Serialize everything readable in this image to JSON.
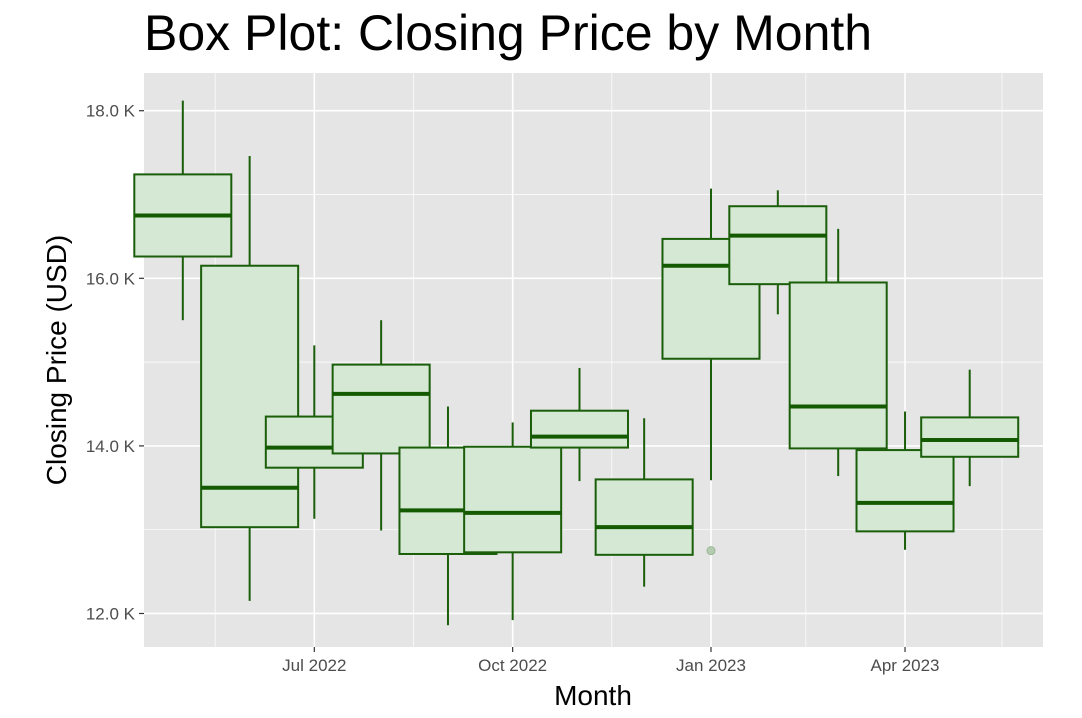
{
  "chart_data": {
    "type": "box",
    "title": "Box Plot: Closing Price by Month",
    "xlabel": "Month",
    "ylabel": "Closing Price (USD)",
    "ylim": [
      11600,
      18450
    ],
    "x_range": [
      "2022-04-13",
      "2023-06-04"
    ],
    "y_ticks": [
      {
        "value": 12000,
        "label": "12.0 K"
      },
      {
        "value": 14000,
        "label": "14.0 K"
      },
      {
        "value": 16000,
        "label": "16.0 K"
      },
      {
        "value": 18000,
        "label": "18.0 K"
      }
    ],
    "y_minor_ticks": [
      13000,
      15000,
      17000
    ],
    "x_ticks": [
      {
        "date": "2022-07-01",
        "label": "Jul 2022"
      },
      {
        "date": "2022-10-01",
        "label": "Oct 2022"
      },
      {
        "date": "2023-01-01",
        "label": "Jan 2023"
      },
      {
        "date": "2023-04-01",
        "label": "Apr 2023"
      }
    ],
    "x_minor_ticks": [
      "2022-05-16",
      "2022-08-16",
      "2022-11-16",
      "2023-02-14",
      "2023-05-16"
    ],
    "boxes": [
      {
        "month": "2022-05-01",
        "min": 15500,
        "q1": 16260,
        "median": 16750,
        "q3": 17240,
        "max": 18120,
        "outliers": []
      },
      {
        "month": "2022-06-01",
        "min": 12150,
        "q1": 13030,
        "median": 13500,
        "q3": 16150,
        "max": 17460,
        "outliers": []
      },
      {
        "month": "2022-07-01",
        "min": 13130,
        "q1": 13740,
        "median": 13980,
        "q3": 14350,
        "max": 15200,
        "outliers": []
      },
      {
        "month": "2022-08-01",
        "min": 12990,
        "q1": 13910,
        "median": 14620,
        "q3": 14970,
        "max": 15500,
        "outliers": []
      },
      {
        "month": "2022-09-01",
        "min": 11860,
        "q1": 12710,
        "median": 13230,
        "q3": 13980,
        "max": 14470,
        "outliers": []
      },
      {
        "month": "2022-10-01",
        "min": 11920,
        "q1": 12730,
        "median": 13200,
        "q3": 13990,
        "max": 14280,
        "outliers": []
      },
      {
        "month": "2022-11-01",
        "min": 13580,
        "q1": 13980,
        "median": 14110,
        "q3": 14420,
        "max": 14930,
        "outliers": []
      },
      {
        "month": "2022-12-01",
        "min": 12320,
        "q1": 12700,
        "median": 13030,
        "q3": 13600,
        "max": 14330,
        "outliers": []
      },
      {
        "month": "2023-01-01",
        "min": 13590,
        "q1": 15040,
        "median": 16150,
        "q3": 16470,
        "max": 17070,
        "outliers": [
          12750
        ]
      },
      {
        "month": "2023-02-01",
        "min": 15570,
        "q1": 15930,
        "median": 16510,
        "q3": 16860,
        "max": 17050,
        "outliers": []
      },
      {
        "month": "2023-03-01",
        "min": 13640,
        "q1": 13970,
        "median": 14470,
        "q3": 15950,
        "max": 16590,
        "outliers": []
      },
      {
        "month": "2023-04-01",
        "min": 12760,
        "q1": 12980,
        "median": 13320,
        "q3": 13950,
        "max": 14410,
        "outliers": []
      },
      {
        "month": "2023-05-01",
        "min": 13520,
        "q1": 13870,
        "median": 14070,
        "q3": 14340,
        "max": 14910,
        "outliers": []
      }
    ],
    "colors": {
      "panel": "#e5e5e5",
      "grid": "#ffffff",
      "box_fill": "#d5e8d4",
      "box_stroke": "#1a5e0a",
      "median": "#145a00",
      "outlier": "#b5cbb2",
      "tick": "#333333"
    }
  }
}
